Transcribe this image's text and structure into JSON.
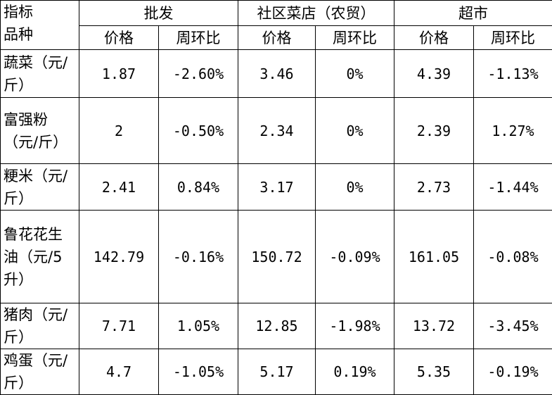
{
  "header": {
    "top_left": "指标",
    "bottom_left": "品种",
    "groups": [
      "批发",
      "社区菜店（农贸）",
      "超市"
    ],
    "subheaders": [
      "价格",
      "周环比",
      "价格",
      "周环比",
      "价格",
      "周环比"
    ]
  },
  "table": {
    "rows": [
      [
        "蔬菜（元/斤）",
        "1.87",
        "-2.60%",
        "3.46",
        "0%",
        "4.39",
        "-1.13%"
      ],
      [
        "富强粉（元/斤）",
        "2",
        "-0.50%",
        "2.34",
        "0%",
        "2.39",
        "1.27%"
      ],
      [
        "粳米（元/斤）",
        "2.41",
        "0.84%",
        "3.17",
        "0%",
        "2.73",
        "-1.44%"
      ],
      [
        "鲁花花生油（元/5升）",
        "142.79",
        "-0.16%",
        "150.72",
        "-0.09%",
        "161.05",
        "-0.08%"
      ],
      [
        "猪肉（元/斤）",
        "7.71",
        "1.05%",
        "12.85",
        "-1.98%",
        "13.72",
        "-3.45%"
      ],
      [
        "鸡蛋（元/斤）",
        "4.7",
        "-1.05%",
        "5.17",
        "0.19%",
        "5.35",
        "-0.19%"
      ]
    ]
  }
}
